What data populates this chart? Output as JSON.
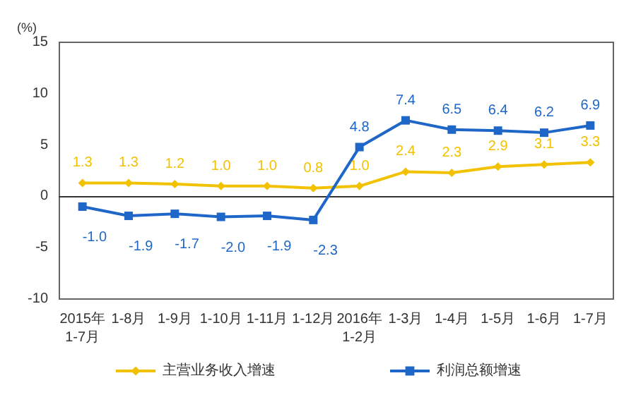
{
  "chart_data": {
    "type": "line",
    "ylabel": "(%)",
    "categories": [
      "2015年\n1-7月",
      "1-8月",
      "1-9月",
      "1-10月",
      "1-11月",
      "1-12月",
      "2016年\n1-2月",
      "1-3月",
      "1-4月",
      "1-5月",
      "1-6月",
      "1-7月"
    ],
    "series": [
      {
        "name": "主营业务收入增速",
        "color": "#f2c200",
        "marker": "diamond",
        "values": [
          1.3,
          1.3,
          1.2,
          1.0,
          1.0,
          0.8,
          1.0,
          2.4,
          2.3,
          2.9,
          3.1,
          3.3
        ],
        "value_labels": [
          "1.3",
          "1.3",
          "1.2",
          "1.0",
          "1.0",
          "0.8",
          "1.0",
          "2.4",
          "2.3",
          "2.9",
          "3.1",
          "3.3"
        ]
      },
      {
        "name": "利润总额增速",
        "color": "#1f66c9",
        "marker": "square",
        "values": [
          -1.0,
          -1.9,
          -1.7,
          -2.0,
          -1.9,
          -2.3,
          4.8,
          7.4,
          6.5,
          6.4,
          6.2,
          6.9
        ],
        "value_labels": [
          "-1.0",
          "-1.9",
          "-1.7",
          "-2.0",
          "-1.9",
          "-2.3",
          "4.8",
          "7.4",
          "6.5",
          "6.4",
          "6.2",
          "6.9"
        ]
      }
    ],
    "ylim": [
      -10,
      15
    ],
    "yticks": [
      -10,
      -5,
      0,
      5,
      10,
      15
    ],
    "legend": "bottom"
  }
}
